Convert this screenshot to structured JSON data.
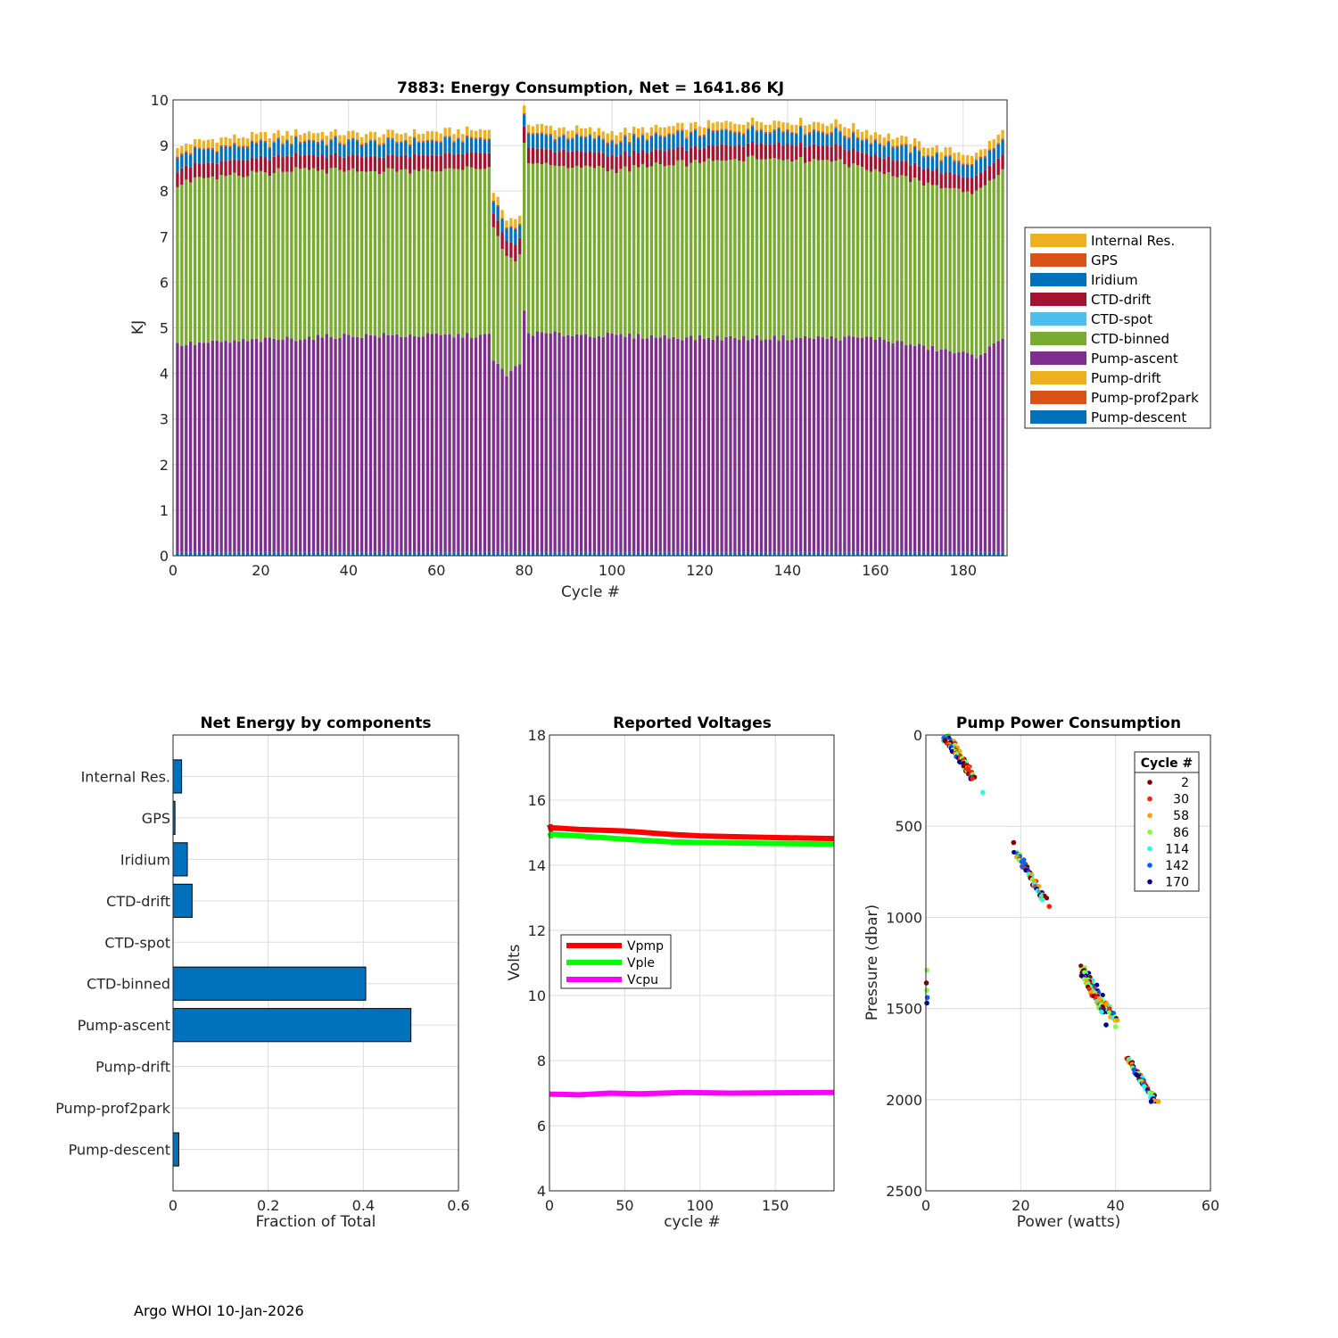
{
  "footer": "Argo WHOI 10-Jan-2026",
  "chart_data": [
    {
      "id": "energy",
      "type": "bar",
      "stacked": true,
      "title": "7883: Energy Consumption,  Net = 1641.86 KJ",
      "xlabel": "Cycle #",
      "ylabel": "KJ",
      "xlim": [
        0,
        190
      ],
      "ylim": [
        0,
        10
      ],
      "xticks": [
        0,
        20,
        40,
        60,
        80,
        100,
        120,
        140,
        160,
        180
      ],
      "yticks": [
        0,
        1,
        2,
        3,
        4,
        5,
        6,
        7,
        8,
        9,
        10
      ],
      "grid": true,
      "legend_position": "outside-right",
      "legend": [
        {
          "name": "Internal Res.",
          "color": "#EDB120"
        },
        {
          "name": "GPS",
          "color": "#D95319"
        },
        {
          "name": "Iridium",
          "color": "#0072BD"
        },
        {
          "name": "CTD-drift",
          "color": "#A2142F"
        },
        {
          "name": "CTD-spot",
          "color": "#4DBEEE"
        },
        {
          "name": "CTD-binned",
          "color": "#77AC30"
        },
        {
          "name": "Pump-ascent",
          "color": "#7E2F8E"
        },
        {
          "name": "Pump-drift",
          "color": "#EDB120"
        },
        {
          "name": "Pump-prof2park",
          "color": "#D95319"
        },
        {
          "name": "Pump-descent",
          "color": "#0072BD"
        }
      ],
      "cycles": {
        "first": 1,
        "last": 189
      },
      "typical_components_kJ": {
        "Pump-descent": 0.08,
        "Pump-prof2park": 0.0,
        "Pump-drift": 0.0,
        "Pump-ascent": 4.55,
        "CTD-binned": 3.75,
        "CTD-spot": 0.0,
        "CTD-drift": 0.33,
        "Iridium": 0.3,
        "GPS": 0.03,
        "Internal Res.": 0.17
      },
      "totals_profile": [
        [
          1,
          8.9
        ],
        [
          3,
          9.05
        ],
        [
          10,
          9.15
        ],
        [
          30,
          9.3
        ],
        [
          45,
          9.25
        ],
        [
          60,
          9.3
        ],
        [
          72,
          9.35
        ],
        [
          73,
          8.05
        ],
        [
          76,
          7.4
        ],
        [
          78,
          7.3
        ],
        [
          79,
          7.5
        ],
        [
          80,
          9.95
        ],
        [
          81,
          9.45
        ],
        [
          100,
          9.3
        ],
        [
          133,
          9.55
        ],
        [
          151,
          9.5
        ],
        [
          170,
          9.05
        ],
        [
          176,
          8.9
        ],
        [
          183,
          8.8
        ],
        [
          189,
          9.3
        ]
      ],
      "ascent_profile": [
        [
          1,
          4.55
        ],
        [
          20,
          4.65
        ],
        [
          40,
          4.75
        ],
        [
          72,
          4.75
        ],
        [
          73,
          4.2
        ],
        [
          76,
          3.9
        ],
        [
          79,
          4.1
        ],
        [
          80,
          5.3
        ],
        [
          81,
          4.8
        ],
        [
          120,
          4.7
        ],
        [
          160,
          4.7
        ],
        [
          168,
          4.55
        ],
        [
          183,
          4.3
        ],
        [
          189,
          4.65
        ]
      ]
    },
    {
      "id": "components",
      "type": "bar",
      "orientation": "horizontal",
      "title": "Net Energy by components",
      "xlabel": "Fraction of Total",
      "xlim": [
        0,
        0.6
      ],
      "xticks": [
        0,
        0.2,
        0.4,
        0.6
      ],
      "grid": true,
      "categories": [
        "Internal Res.",
        "GPS",
        "Iridium",
        "CTD-drift",
        "CTD-spot",
        "CTD-binned",
        "Pump-ascent",
        "Pump-drift",
        "Pump-prof2park",
        "Pump-descent"
      ],
      "values": [
        0.018,
        0.004,
        0.03,
        0.04,
        0.0,
        0.405,
        0.5,
        0.0,
        0.0,
        0.012
      ],
      "bar_color": "#0072BD"
    },
    {
      "id": "voltages",
      "type": "line",
      "title": "Reported Voltages",
      "xlabel": "cycle #",
      "ylabel": "Volts",
      "xlim": [
        0,
        189
      ],
      "ylim": [
        4,
        18
      ],
      "xticks": [
        0,
        50,
        100,
        150
      ],
      "yticks": [
        4,
        6,
        8,
        10,
        12,
        14,
        16,
        18
      ],
      "grid": true,
      "legend_position": "left-middle",
      "series": [
        {
          "name": "Vpmp",
          "color": "#FF0000",
          "x": [
            0,
            1,
            2,
            20,
            50,
            80,
            100,
            150,
            189
          ],
          "y": [
            15.25,
            15.1,
            15.15,
            15.1,
            15.05,
            14.95,
            14.9,
            14.85,
            14.82
          ]
        },
        {
          "name": "Vple",
          "color": "#00FF00",
          "x": [
            0,
            1,
            2,
            20,
            50,
            80,
            100,
            150,
            189
          ],
          "y": [
            15.0,
            14.9,
            14.95,
            14.9,
            14.8,
            14.72,
            14.7,
            14.67,
            14.65
          ]
        },
        {
          "name": "Vcpu",
          "color": "#FF00FF",
          "x": [
            0,
            20,
            40,
            60,
            90,
            120,
            150,
            189
          ],
          "y": [
            6.97,
            6.95,
            7.0,
            6.98,
            7.02,
            7.0,
            7.01,
            7.02
          ]
        }
      ]
    },
    {
      "id": "pump_power",
      "type": "scatter",
      "title": "Pump Power Consumption",
      "xlabel": "Power (watts)",
      "ylabel": "Pressure (dbar)",
      "xlim": [
        0,
        60
      ],
      "ylim": [
        2500,
        0
      ],
      "y_reversed": true,
      "xticks": [
        0,
        20,
        40,
        60
      ],
      "yticks": [
        0,
        500,
        1000,
        1500,
        2000,
        2500
      ],
      "grid": true,
      "legend_title": "Cycle #",
      "legend_position": "top-right",
      "series": [
        {
          "name": "2",
          "color": "#800000"
        },
        {
          "name": "30",
          "color": "#FF2000"
        },
        {
          "name": "58",
          "color": "#FF9F00"
        },
        {
          "name": "86",
          "color": "#7FFF40"
        },
        {
          "name": "114",
          "color": "#20FFDF"
        },
        {
          "name": "142",
          "color": "#0060FF"
        },
        {
          "name": "170",
          "color": "#00008F"
        }
      ],
      "clusters": [
        {
          "from": [
            4.5,
            0
          ],
          "to": [
            10,
            240
          ]
        },
        {
          "from": [
            4,
            20
          ],
          "to": [
            9,
            190
          ]
        },
        {
          "from": [
            19,
            640
          ],
          "to": [
            25,
            900
          ]
        },
        {
          "from": [
            33,
            1270
          ],
          "to": [
            40,
            1570
          ]
        },
        {
          "from": [
            33,
            1300
          ],
          "to": [
            37.5,
            1520
          ]
        },
        {
          "from": [
            42.5,
            1770
          ],
          "to": [
            48.5,
            2010
          ]
        }
      ],
      "points": [
        {
          "x": 4,
          "y": 30,
          "series": "2"
        },
        {
          "x": 18.5,
          "y": 590,
          "series": "2"
        },
        {
          "x": 26,
          "y": 940,
          "series": "30"
        },
        {
          "x": 12,
          "y": 315,
          "series": "114"
        },
        {
          "x": 0.2,
          "y": 1290,
          "series": "86"
        },
        {
          "x": 0.1,
          "y": 1360,
          "series": "2"
        },
        {
          "x": 0.2,
          "y": 1400,
          "series": "86"
        },
        {
          "x": 0.3,
          "y": 1440,
          "series": "142"
        },
        {
          "x": 0.2,
          "y": 1470,
          "series": "170"
        },
        {
          "x": 38,
          "y": 1590,
          "series": "170"
        },
        {
          "x": 40,
          "y": 1600,
          "series": "86"
        },
        {
          "x": 49,
          "y": 2010,
          "series": "58"
        },
        {
          "x": 47.5,
          "y": 2010,
          "series": "170"
        }
      ]
    }
  ]
}
